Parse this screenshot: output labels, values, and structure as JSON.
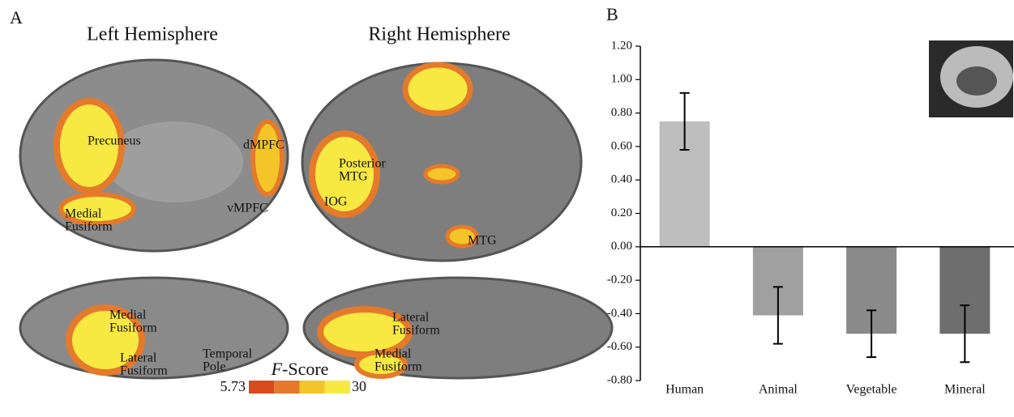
{
  "panel_a": {
    "label": "A",
    "hemispheres": [
      "Left Hemisphere",
      "Right Hemisphere"
    ],
    "regions": [
      [
        "Precuneus"
      ],
      [
        "dMPFC"
      ],
      [
        "vMPFC"
      ],
      [
        "Medial",
        "Fusiform"
      ],
      [
        "Posterior",
        "MTG"
      ],
      [
        "IOG"
      ],
      [
        "MTG"
      ],
      [
        "Medial",
        "Fusiform"
      ],
      [
        "Lateral",
        "Fusiform"
      ],
      [
        "Temporal",
        "Pole"
      ],
      [
        "Lateral",
        "Fusiform"
      ],
      [
        "Medial",
        "Fusiform"
      ]
    ],
    "colorbar": {
      "title_symbol": "F",
      "title_rest": "-Score",
      "min": 5.73,
      "max": 30,
      "colors": [
        "#d84a1c",
        "#e47a2a",
        "#f3c528",
        "#f7e842"
      ]
    }
  },
  "chart_data": {
    "type": "bar",
    "label": "B",
    "categories": [
      "Human",
      "Animal",
      "Vegetable",
      "Mineral"
    ],
    "values": [
      0.75,
      -0.41,
      -0.52,
      -0.52
    ],
    "errors": [
      0.17,
      0.17,
      0.14,
      0.17
    ],
    "colors": [
      "#bdbdbd",
      "#a0a0a0",
      "#8a8a8a",
      "#6e6e6e"
    ],
    "ylim": [
      -0.8,
      1.2
    ],
    "yticks": [
      {
        "value": -0.8,
        "label": "-0.80"
      },
      {
        "value": -0.6,
        "label": "-0.60"
      },
      {
        "value": -0.4,
        "label": "-0.40"
      },
      {
        "value": -0.2,
        "label": "-0.20"
      },
      {
        "value": 0,
        "label": "0.00"
      },
      {
        "value": 0.2,
        "label": "0.20"
      },
      {
        "value": 0.4,
        "label": "0.40"
      },
      {
        "value": 0.6,
        "label": "0.60"
      },
      {
        "value": 0.8,
        "label": "0.80"
      },
      {
        "value": 1.0,
        "label": "1.00"
      },
      {
        "value": 1.2,
        "label": "1.20"
      }
    ]
  }
}
